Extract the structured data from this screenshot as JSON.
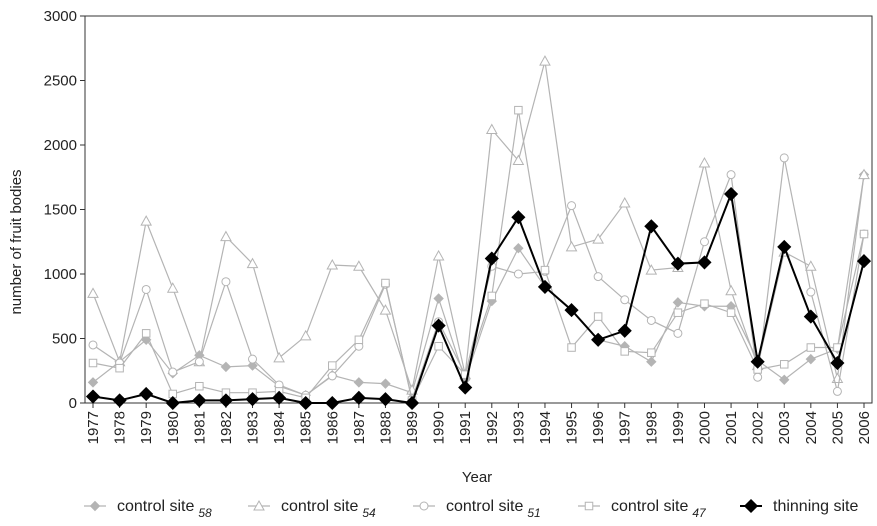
{
  "chart_data": {
    "type": "line",
    "title": "",
    "xlabel": "Year",
    "ylabel": "number of  fruit bodies",
    "ylim": [
      0,
      3000
    ],
    "yticks": [
      0,
      500,
      1000,
      1500,
      2000,
      2500,
      3000
    ],
    "categories": [
      "1977",
      "1978",
      "1979",
      "1980",
      "1981",
      "1982",
      "1983",
      "1984",
      "1985",
      "1986",
      "1987",
      "1988",
      "1989",
      "1990",
      "1991",
      "1992",
      "1993",
      "1994",
      "1995",
      "1996",
      "1997",
      "1998",
      "1999",
      "2000",
      "2001",
      "2002",
      "2003",
      "2004",
      "2005",
      "2006"
    ],
    "grid": false,
    "legend_position": "bottom",
    "series": [
      {
        "key": "site58",
        "name": "control site",
        "subscript": "58",
        "color": "#b4b4b4",
        "marker": "diamond",
        "filled": true,
        "values": [
          160,
          320,
          490,
          230,
          370,
          280,
          290,
          130,
          60,
          215,
          160,
          150,
          80,
          810,
          180,
          790,
          1200,
          900,
          720,
          490,
          440,
          320,
          780,
          750,
          750,
          330,
          180,
          340,
          420,
          1770
        ]
      },
      {
        "key": "site54",
        "name": "control site",
        "subscript": "54",
        "color": "#b4b4b4",
        "marker": "triangle",
        "filled": false,
        "values": [
          850,
          320,
          1410,
          890,
          320,
          1290,
          1080,
          350,
          520,
          1070,
          1060,
          720,
          100,
          1140,
          220,
          2120,
          1880,
          2650,
          1210,
          1270,
          1550,
          1030,
          1050,
          1860,
          870,
          290,
          1170,
          1060,
          190,
          1770
        ]
      },
      {
        "key": "site51",
        "name": "control site",
        "subscript": "51",
        "color": "#b4b4b4",
        "marker": "circle",
        "filled": false,
        "values": [
          450,
          310,
          880,
          240,
          320,
          940,
          340,
          140,
          60,
          210,
          440,
          920,
          30,
          630,
          220,
          1060,
          1000,
          1020,
          1530,
          980,
          800,
          640,
          540,
          1250,
          1770,
          200,
          1900,
          860,
          90,
          1310
        ]
      },
      {
        "key": "site47",
        "name": "control site",
        "subscript": "47",
        "color": "#b4b4b4",
        "marker": "square",
        "filled": false,
        "values": [
          310,
          270,
          540,
          70,
          130,
          80,
          80,
          90,
          40,
          290,
          490,
          930,
          20,
          440,
          220,
          830,
          2270,
          1030,
          430,
          670,
          400,
          390,
          700,
          770,
          700,
          260,
          300,
          430,
          430,
          1310
        ]
      },
      {
        "key": "thinning",
        "name": "thinning site",
        "subscript": "",
        "color": "#000000",
        "marker": "diamond",
        "filled": true,
        "values": [
          50,
          20,
          70,
          0,
          20,
          20,
          30,
          40,
          0,
          0,
          40,
          30,
          0,
          600,
          120,
          1120,
          1440,
          900,
          720,
          490,
          560,
          1370,
          1080,
          1090,
          1620,
          320,
          1210,
          670,
          310,
          1100
        ]
      }
    ]
  }
}
